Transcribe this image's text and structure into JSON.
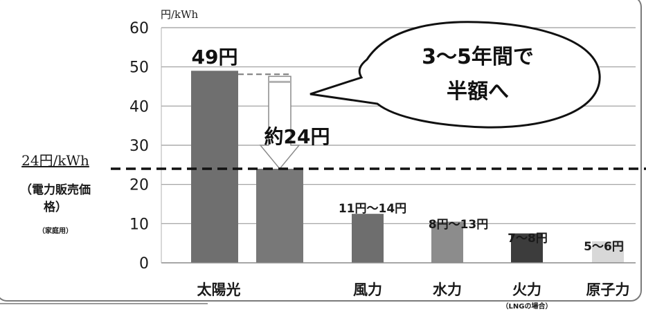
{
  "chart_data": {
    "type": "bar",
    "y_unit": "円/kWh",
    "ylim": [
      0,
      60
    ],
    "y_ticks": [
      0,
      10,
      20,
      30,
      40,
      50,
      60
    ],
    "grid": true,
    "categories": [
      {
        "label": "太陽光",
        "sub": ""
      },
      {
        "label": "",
        "sub": ""
      },
      {
        "label": "風力",
        "sub": ""
      },
      {
        "label": "水力",
        "sub": ""
      },
      {
        "label": "火力",
        "sub": "（LNGの場合）"
      },
      {
        "label": "原子力",
        "sub": ""
      }
    ],
    "bars": [
      {
        "value": 49,
        "color": "#6f6f6f",
        "label": "49円",
        "label_style": "big"
      },
      {
        "value": 24,
        "color": "#787878",
        "label": "約24円",
        "label_style": "big"
      },
      {
        "value": 12.5,
        "color": "#6e6e6e",
        "label": "11円～14円",
        "label_style": "normal"
      },
      {
        "value": 10.5,
        "color": "#8c8c8c",
        "label": "8円～13円",
        "label_style": "normal"
      },
      {
        "value": 7.5,
        "color": "#3c3c3c",
        "label": "7～8円",
        "label_style": "normal"
      },
      {
        "value": 5.5,
        "color": "#d8d8d8",
        "label": "5～6円",
        "label_style": "normal"
      }
    ],
    "reference_line": {
      "value": 24,
      "label": "24円/kWh",
      "note": [
        "（電力販売価",
        "格）"
      ],
      "note_small": "（家庭用）"
    },
    "callout": [
      "3～5年間で",
      "半額へ"
    ]
  }
}
